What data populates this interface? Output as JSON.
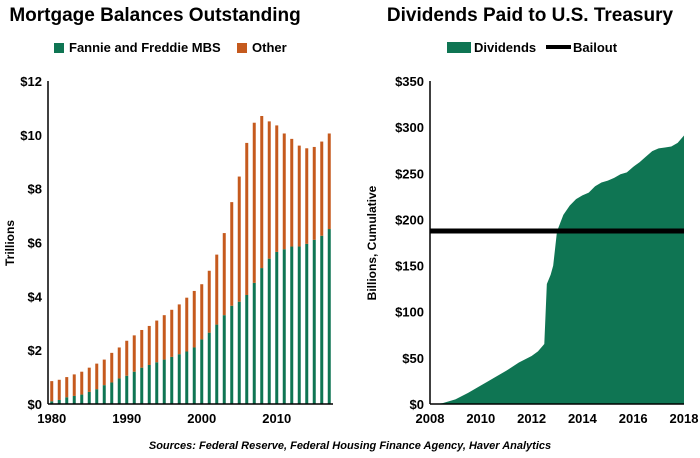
{
  "source": "Sources: Federal Reserve, Federal Housing Finance Agency, Haver Analytics",
  "colors": {
    "green": "#0f7553",
    "orange": "#c55a1e",
    "black": "#000000"
  },
  "chart_data": [
    {
      "type": "bar",
      "stacked": true,
      "title": "Mortgage Balances Outstanding",
      "xlabel": "",
      "ylabel": "Trillions",
      "ylim": [
        0,
        12
      ],
      "xlim": [
        1980,
        2017
      ],
      "yticks": [
        "$0",
        "$2",
        "$4",
        "$6",
        "$8",
        "$10",
        "$12"
      ],
      "xticks": [
        "1980",
        "1990",
        "2000",
        "2010"
      ],
      "legend_position": "top",
      "grid": false,
      "categories": [
        1980,
        1981,
        1982,
        1983,
        1984,
        1985,
        1986,
        1987,
        1988,
        1989,
        1990,
        1991,
        1992,
        1993,
        1994,
        1995,
        1996,
        1997,
        1998,
        1999,
        2000,
        2001,
        2002,
        2003,
        2004,
        2005,
        2006,
        2007,
        2008,
        2009,
        2010,
        2011,
        2012,
        2013,
        2014,
        2015,
        2016,
        2017
      ],
      "series": [
        {
          "name": "Fannie and Freddie MBS",
          "color": "#0f7553",
          "values": [
            0.1,
            0.15,
            0.25,
            0.3,
            0.35,
            0.45,
            0.55,
            0.7,
            0.8,
            0.95,
            1.05,
            1.2,
            1.35,
            1.45,
            1.55,
            1.65,
            1.75,
            1.85,
            1.95,
            2.1,
            2.4,
            2.65,
            2.95,
            3.3,
            3.65,
            3.8,
            4.05,
            4.5,
            5.05,
            5.4,
            5.65,
            5.75,
            5.85,
            5.85,
            5.95,
            6.1,
            6.25,
            6.5
          ]
        },
        {
          "name": "Other",
          "color": "#c55a1e",
          "values": [
            0.75,
            0.75,
            0.75,
            0.8,
            0.85,
            0.9,
            0.95,
            0.95,
            1.1,
            1.15,
            1.3,
            1.35,
            1.4,
            1.45,
            1.55,
            1.65,
            1.75,
            1.85,
            2.0,
            2.1,
            2.05,
            2.3,
            2.6,
            3.05,
            3.85,
            4.65,
            5.65,
            5.95,
            5.65,
            5.1,
            4.7,
            4.3,
            4.0,
            3.75,
            3.55,
            3.45,
            3.5,
            3.55
          ]
        }
      ]
    },
    {
      "type": "area",
      "title": "Dividends Paid to U.S. Treasury",
      "xlabel": "",
      "ylabel": "Billions, Cumulative",
      "ylim": [
        0,
        350
      ],
      "xlim": [
        2008,
        2018
      ],
      "yticks": [
        "$0",
        "$50",
        "$100",
        "$150",
        "$200",
        "$250",
        "$300",
        "$350"
      ],
      "xticks": [
        "2008",
        "2010",
        "2012",
        "2014",
        "2016",
        "2018"
      ],
      "legend_position": "top",
      "grid": false,
      "series": [
        {
          "name": "Dividends",
          "color": "#0f7553",
          "kind": "area",
          "x": [
            2008.25,
            2008.5,
            2009.0,
            2009.5,
            2010.0,
            2010.5,
            2011.0,
            2011.5,
            2012.0,
            2012.25,
            2012.5,
            2012.6,
            2012.75,
            2012.85,
            2013.0,
            2013.25,
            2013.5,
            2013.75,
            2014.0,
            2014.25,
            2014.5,
            2014.75,
            2015.0,
            2015.25,
            2015.5,
            2015.75,
            2016.0,
            2016.25,
            2016.5,
            2016.75,
            2017.0,
            2017.25,
            2017.5,
            2017.75,
            2018.0
          ],
          "y": [
            0,
            1,
            5,
            12,
            20,
            28,
            36,
            45,
            52,
            57,
            65,
            130,
            140,
            150,
            187,
            205,
            215,
            222,
            226,
            229,
            236,
            240,
            242,
            245,
            249,
            251,
            257,
            262,
            268,
            274,
            277,
            278,
            279,
            283,
            291
          ]
        },
        {
          "name": "Bailout",
          "color": "#000000",
          "kind": "line",
          "value": 187.5
        }
      ]
    }
  ]
}
